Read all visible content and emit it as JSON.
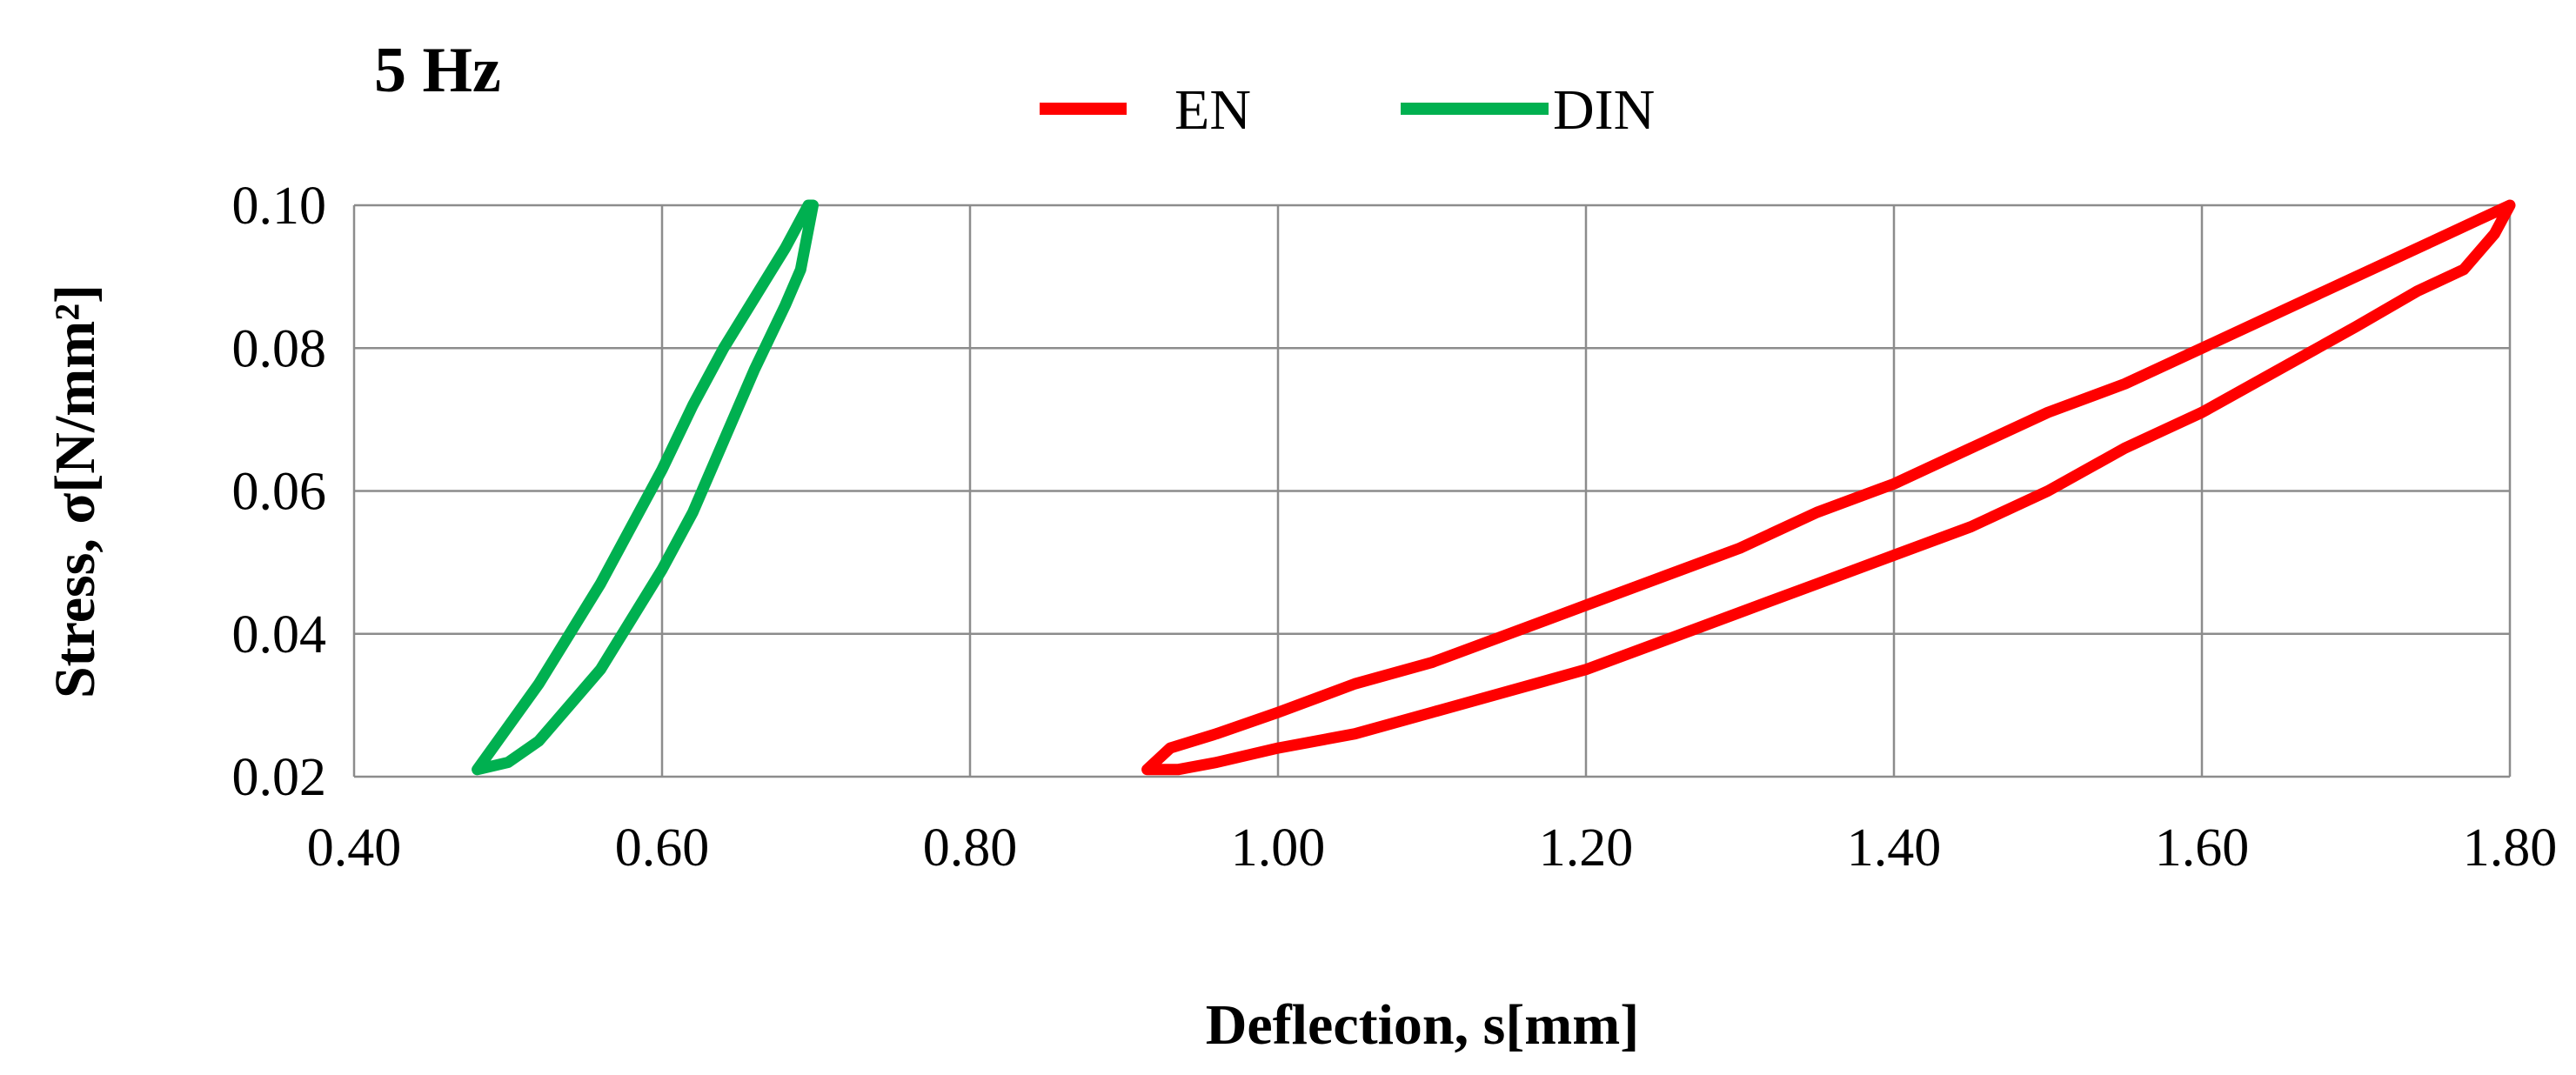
{
  "chart_data": {
    "type": "line",
    "title": "5 Hz",
    "xlabel": "Deflection, s[mm]",
    "ylabel": "Stress, σ[N/mm²]",
    "xlim": [
      0.4,
      1.8
    ],
    "ylim": [
      0.02,
      0.1
    ],
    "x_ticks": [
      "0.40",
      "0.60",
      "0.80",
      "1.00",
      "1.20",
      "1.40",
      "1.60",
      "1.80"
    ],
    "y_ticks": [
      "0.02",
      "0.04",
      "0.06",
      "0.08",
      "0.10"
    ],
    "grid": true,
    "legend_position": "top-center",
    "series": [
      {
        "name": "EN",
        "color": "#ff0000",
        "x": [
          0.915,
          0.93,
          0.96,
          1.0,
          1.05,
          1.1,
          1.15,
          1.2,
          1.25,
          1.3,
          1.35,
          1.4,
          1.45,
          1.5,
          1.55,
          1.6,
          1.65,
          1.7,
          1.75,
          1.78,
          1.8,
          1.79,
          1.77,
          1.74,
          1.7,
          1.65,
          1.6,
          1.55,
          1.5,
          1.45,
          1.4,
          1.35,
          1.3,
          1.25,
          1.2,
          1.15,
          1.1,
          1.05,
          1.0,
          0.96,
          0.935,
          0.915
        ],
        "y": [
          0.021,
          0.024,
          0.026,
          0.029,
          0.033,
          0.036,
          0.04,
          0.044,
          0.048,
          0.052,
          0.057,
          0.061,
          0.066,
          0.071,
          0.075,
          0.08,
          0.085,
          0.09,
          0.095,
          0.098,
          0.1,
          0.096,
          0.091,
          0.088,
          0.083,
          0.077,
          0.071,
          0.066,
          0.06,
          0.055,
          0.051,
          0.047,
          0.043,
          0.039,
          0.035,
          0.032,
          0.029,
          0.026,
          0.024,
          0.022,
          0.021,
          0.021
        ]
      },
      {
        "name": "DIN",
        "color": "#00b050",
        "x": [
          0.48,
          0.5,
          0.52,
          0.54,
          0.56,
          0.58,
          0.6,
          0.62,
          0.64,
          0.66,
          0.68,
          0.695,
          0.698,
          0.69,
          0.68,
          0.66,
          0.64,
          0.62,
          0.6,
          0.58,
          0.56,
          0.54,
          0.52,
          0.5,
          0.48
        ],
        "y": [
          0.021,
          0.027,
          0.033,
          0.04,
          0.047,
          0.055,
          0.063,
          0.072,
          0.08,
          0.087,
          0.094,
          0.1,
          0.1,
          0.091,
          0.086,
          0.077,
          0.067,
          0.057,
          0.049,
          0.042,
          0.035,
          0.03,
          0.025,
          0.022,
          0.021
        ]
      }
    ]
  }
}
